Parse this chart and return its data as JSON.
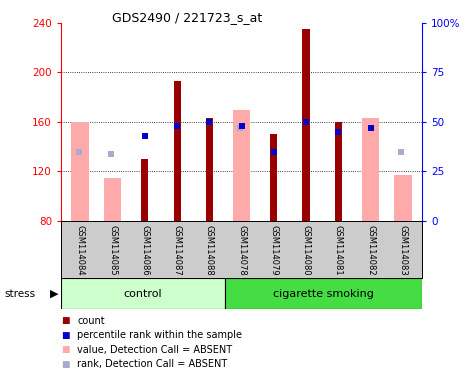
{
  "title": "GDS2490 / 221723_s_at",
  "samples": [
    "GSM114084",
    "GSM114085",
    "GSM114086",
    "GSM114087",
    "GSM114088",
    "GSM114078",
    "GSM114079",
    "GSM114080",
    "GSM114081",
    "GSM114082",
    "GSM114083"
  ],
  "control_count": 5,
  "smoking_count": 6,
  "ylim_left": [
    80,
    240
  ],
  "ylim_right": [
    0,
    100
  ],
  "yticks_left": [
    80,
    120,
    160,
    200,
    240
  ],
  "yticks_right": [
    0,
    25,
    50,
    75,
    100
  ],
  "ytick_labels_right": [
    "0",
    "25",
    "50",
    "75",
    "100%"
  ],
  "red_bars": [
    null,
    null,
    130,
    193,
    163,
    null,
    150,
    235,
    160,
    null,
    null
  ],
  "blue_bars": [
    null,
    null,
    149,
    157,
    160,
    157,
    136,
    160,
    152,
    155,
    null
  ],
  "pink_bars": [
    160,
    115,
    null,
    null,
    null,
    170,
    null,
    null,
    null,
    163,
    117
  ],
  "lavender_bars": [
    136,
    134,
    null,
    null,
    null,
    155,
    null,
    null,
    null,
    null,
    136
  ],
  "red_color": "#990000",
  "blue_color": "#0000cc",
  "pink_color": "#ffaaaa",
  "lavender_color": "#aaaacc",
  "group_control_color": "#ccffcc",
  "group_smoking_color": "#44dd44",
  "tick_area_color": "#cccccc",
  "stress_label": "stress",
  "legend_items": [
    "count",
    "percentile rank within the sample",
    "value, Detection Call = ABSENT",
    "rank, Detection Call = ABSENT"
  ]
}
